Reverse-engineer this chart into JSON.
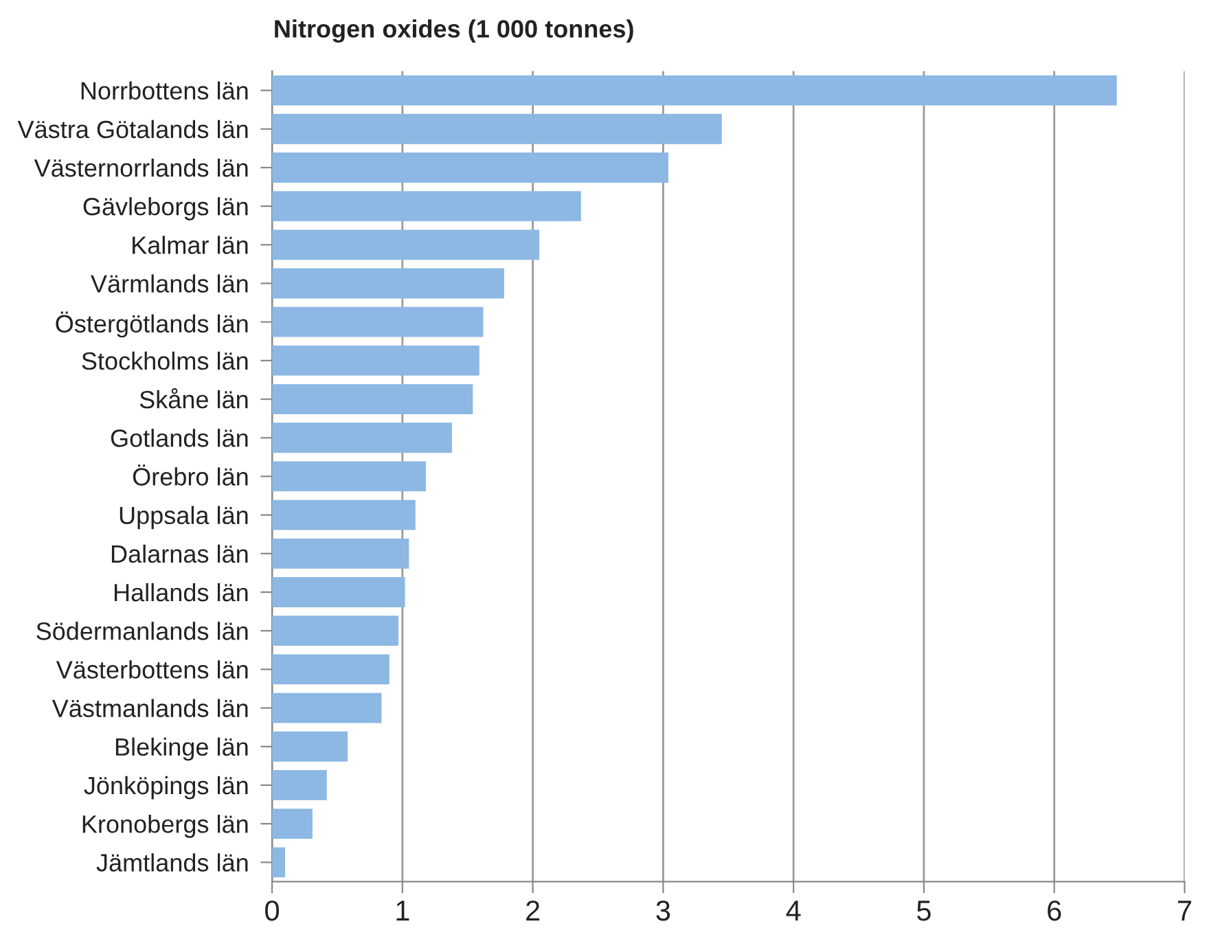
{
  "chart_data": {
    "type": "bar",
    "orientation": "horizontal",
    "title": "Nitrogen oxides (1 000 tonnes)",
    "categories": [
      "Norrbottens län",
      "Västra Götalands län",
      "Västernorrlands län",
      "Gävleborgs län",
      "Kalmar län",
      "Värmlands län",
      "Östergötlands län",
      "Stockholms län",
      "Skåne län",
      "Gotlands län",
      "Örebro län",
      "Uppsala län",
      "Dalarnas län",
      "Hallands län",
      "Södermanlands län",
      "Västerbottens län",
      "Västmanlands län",
      "Blekinge län",
      "Jönköpings län",
      "Kronobergs län",
      "Jämtlands län"
    ],
    "values": [
      6.48,
      3.45,
      3.04,
      2.37,
      2.05,
      1.78,
      1.62,
      1.59,
      1.54,
      1.38,
      1.18,
      1.1,
      1.05,
      1.02,
      0.97,
      0.9,
      0.84,
      0.58,
      0.42,
      0.31,
      0.1
    ],
    "color": "#8db8e3",
    "xlim": [
      0,
      7
    ],
    "xticks": [
      0,
      1,
      2,
      3,
      4,
      5,
      6,
      7
    ],
    "grid": "x",
    "legend": false
  }
}
